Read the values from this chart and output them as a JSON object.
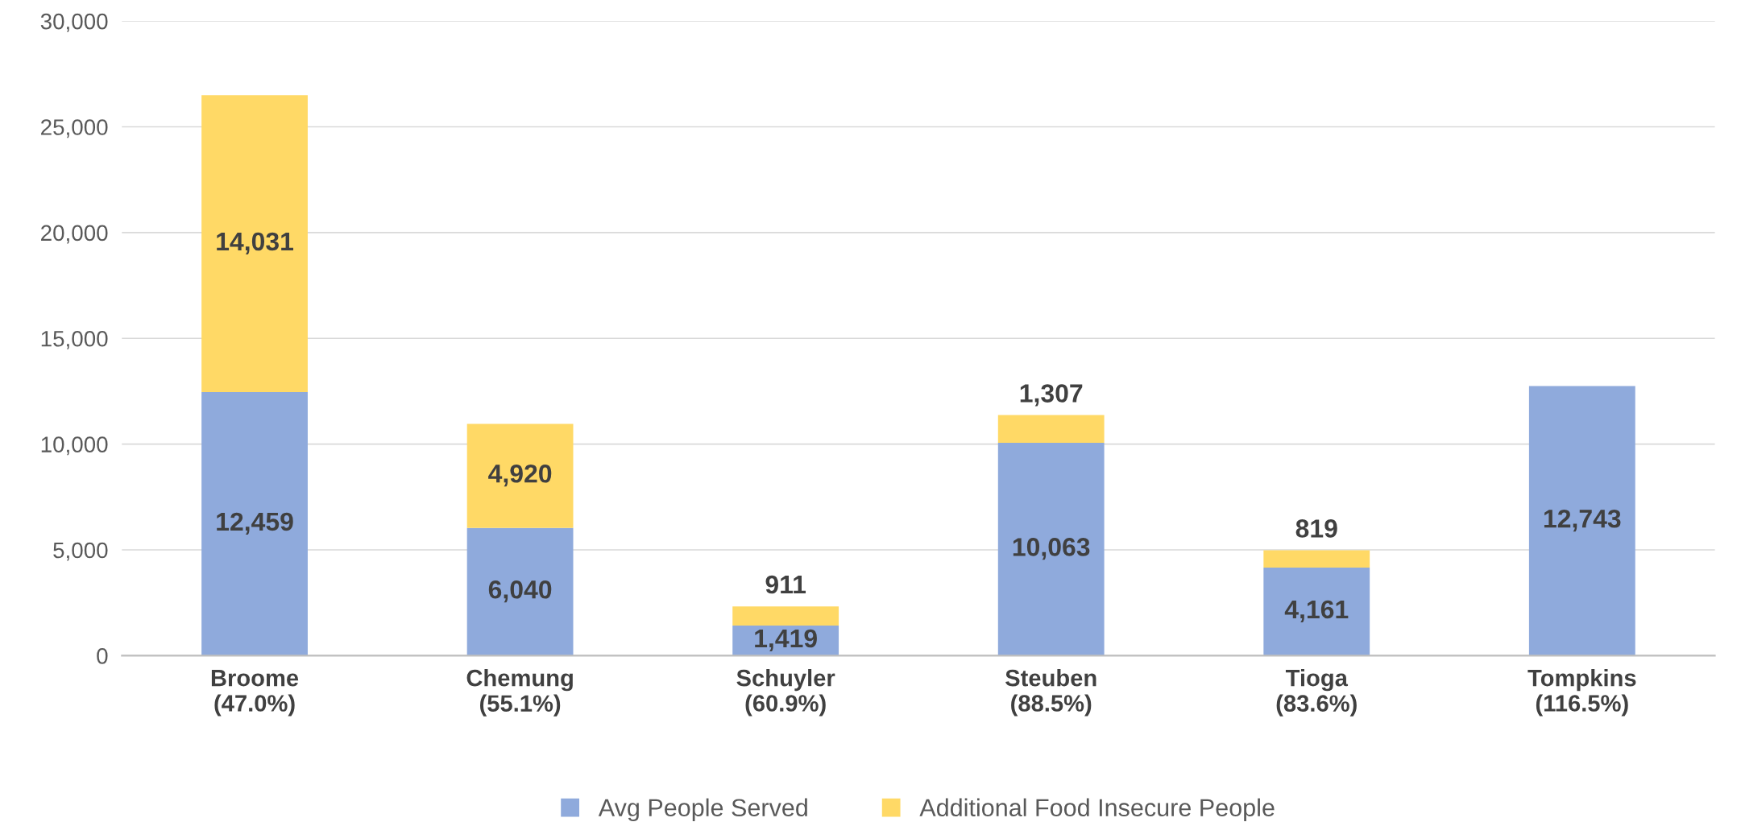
{
  "chart_data": {
    "type": "bar",
    "stacked": true,
    "categories": [
      "Broome\n(47.0%)",
      "Chemung\n(55.1%)",
      "Schuyler\n(60.9%)",
      "Steuben\n(88.5%)",
      "Tioga\n(83.6%)",
      "Tompkins\n(116.5%)"
    ],
    "series": [
      {
        "name": "Avg People Served",
        "color": "#8faadc",
        "values": [
          12459,
          6040,
          1419,
          10063,
          4161,
          12743
        ],
        "value_labels": [
          "12,459",
          "6,040",
          "1,419",
          "10,063",
          "4,161",
          "12,743"
        ]
      },
      {
        "name": "Additional Food Insecure People",
        "color": "#ffd966",
        "values": [
          14031,
          4920,
          911,
          1307,
          819,
          null
        ],
        "value_labels": [
          "14,031",
          "4,920",
          "911",
          "1,307",
          "819",
          null
        ]
      }
    ],
    "ylim": [
      0,
      30000
    ],
    "yticks": [
      {
        "value": 0,
        "label": "0"
      },
      {
        "value": 5000,
        "label": "5,000"
      },
      {
        "value": 10000,
        "label": "10,000"
      },
      {
        "value": 15000,
        "label": "15,000"
      },
      {
        "value": 20000,
        "label": "20,000"
      },
      {
        "value": 25000,
        "label": "25,000"
      },
      {
        "value": 30000,
        "label": "30,000"
      }
    ],
    "grid": "y",
    "legend": "bottom"
  }
}
